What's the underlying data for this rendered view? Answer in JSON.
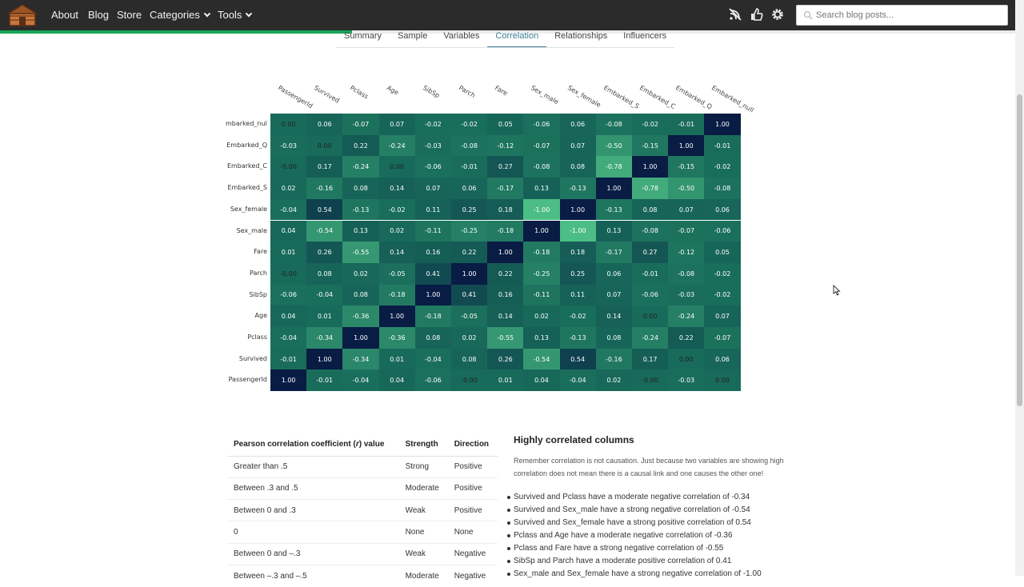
{
  "nav": {
    "links": [
      "About",
      "Blog",
      "Store"
    ],
    "dropdowns": [
      "Categories",
      "Tools"
    ],
    "icons": [
      "rss-off-icon",
      "thumbs-up-icon",
      "settings-icon"
    ],
    "search_placeholder": "Search blog posts..."
  },
  "tabs": [
    "Summary",
    "Sample",
    "Variables",
    "Correlation",
    "Relationships",
    "Influencers"
  ],
  "active_tab": "Correlation",
  "chart_data": {
    "type": "heatmap",
    "columns": [
      "PassengerId",
      "Survived",
      "Pclass",
      "Age",
      "SibSp",
      "Parch",
      "Fare",
      "Sex_male",
      "Sex_female",
      "Embarked_S",
      "Embarked_C",
      "Embarked_Q",
      "Embarked_null"
    ],
    "rows": [
      "Embarked_null",
      "Embarked_Q",
      "Embarked_C",
      "Embarked_S",
      "Sex_female",
      "Sex_male",
      "Fare",
      "Parch",
      "SibSp",
      "Age",
      "Pclass",
      "Survived",
      "PassengerId"
    ],
    "row_display": [
      "mbarked_null",
      "Embarked_Q",
      "Embarked_C",
      "Embarked_S",
      "Sex_female",
      "Sex_male",
      "Fare",
      "Parch",
      "SibSp",
      "Age",
      "Pclass",
      "Survived",
      "PassengerId"
    ],
    "values": [
      [
        "0.00",
        "0.06",
        "-0.07",
        "0.07",
        "-0.02",
        "-0.02",
        "0.05",
        "-0.06",
        "0.06",
        "-0.08",
        "-0.02",
        "-0.01",
        "1.00"
      ],
      [
        "-0.03",
        "0.00",
        "0.22",
        "-0.24",
        "-0.03",
        "-0.08",
        "-0.12",
        "-0.07",
        "0.07",
        "-0.50",
        "-0.15",
        "1.00",
        "-0.01"
      ],
      [
        "-0.00",
        "0.17",
        "-0.24",
        "0.00",
        "-0.06",
        "-0.01",
        "0.27",
        "-0.08",
        "0.08",
        "-0.78",
        "1.00",
        "-0.15",
        "-0.02"
      ],
      [
        "0.02",
        "-0.16",
        "0.08",
        "0.14",
        "0.07",
        "0.06",
        "-0.17",
        "0.13",
        "-0.13",
        "1.00",
        "-0.78",
        "-0.50",
        "-0.08"
      ],
      [
        "-0.04",
        "0.54",
        "-0.13",
        "-0.02",
        "0.11",
        "0.25",
        "0.18",
        "-1.00",
        "1.00",
        "-0.13",
        "0.08",
        "0.07",
        "0.06"
      ],
      [
        "0.04",
        "-0.54",
        "0.13",
        "0.02",
        "-0.11",
        "-0.25",
        "-0.18",
        "1.00",
        "-1.00",
        "0.13",
        "-0.08",
        "-0.07",
        "-0.06"
      ],
      [
        "0.01",
        "0.26",
        "-0.55",
        "0.14",
        "0.16",
        "0.22",
        "1.00",
        "-0.18",
        "0.18",
        "-0.17",
        "0.27",
        "-0.12",
        "0.05"
      ],
      [
        "-0.00",
        "0.08",
        "0.02",
        "-0.05",
        "0.41",
        "1.00",
        "0.22",
        "-0.25",
        "0.25",
        "0.06",
        "-0.01",
        "-0.08",
        "-0.02"
      ],
      [
        "-0.06",
        "-0.04",
        "0.08",
        "-0.18",
        "1.00",
        "0.41",
        "0.16",
        "-0.11",
        "0.11",
        "0.07",
        "-0.06",
        "-0.03",
        "-0.02"
      ],
      [
        "0.04",
        "0.01",
        "-0.36",
        "1.00",
        "-0.18",
        "-0.05",
        "0.14",
        "0.02",
        "-0.02",
        "0.14",
        "0.00",
        "-0.24",
        "0.07"
      ],
      [
        "-0.04",
        "-0.34",
        "1.00",
        "-0.36",
        "0.08",
        "0.02",
        "-0.55",
        "0.13",
        "-0.13",
        "0.08",
        "-0.24",
        "0.22",
        "-0.07"
      ],
      [
        "-0.01",
        "1.00",
        "-0.34",
        "0.01",
        "-0.04",
        "0.08",
        "0.26",
        "-0.54",
        "0.54",
        "-0.16",
        "0.17",
        "0.00",
        "0.06"
      ],
      [
        "1.00",
        "-0.01",
        "-0.04",
        "0.04",
        "-0.06",
        "-0.00",
        "0.01",
        "0.04",
        "-0.04",
        "0.02",
        "-0.00",
        "-0.03",
        "0.00"
      ]
    ]
  },
  "pearson_table": {
    "headers": [
      "Pearson correlation coefficient (r) value",
      "Strength",
      "Direction"
    ],
    "rows": [
      [
        "Greater than .5",
        "Strong",
        "Positive"
      ],
      [
        "Between .3 and .5",
        "Moderate",
        "Positive"
      ],
      [
        "Between 0 and .3",
        "Weak",
        "Positive"
      ],
      [
        "0",
        "None",
        "None"
      ],
      [
        "Between 0 and –.3",
        "Weak",
        "Negative"
      ],
      [
        "Between –.3 and –.5",
        "Moderate",
        "Negative"
      ]
    ]
  },
  "highly_correlated": {
    "title": "Highly correlated columns",
    "note": "Remember correlation is not causation. Just because two variables are showing high correlation does not mean there is a causal link and one causes the other one!",
    "items": [
      "Survived and Pclass have a moderate negative correlation of -0.34",
      "Survived and Sex_male have a strong negative correlation of -0.54",
      "Survived and Sex_female have a strong positive correlation of 0.54",
      "Pclass and Age have a moderate negative correlation of -0.36",
      "Pclass and Fare have a strong negative correlation of -0.55",
      "SibSp and Parch have a moderate positive correlation of 0.41",
      "Sex_male and Sex_female have a strong negative correlation of -1.00"
    ]
  }
}
